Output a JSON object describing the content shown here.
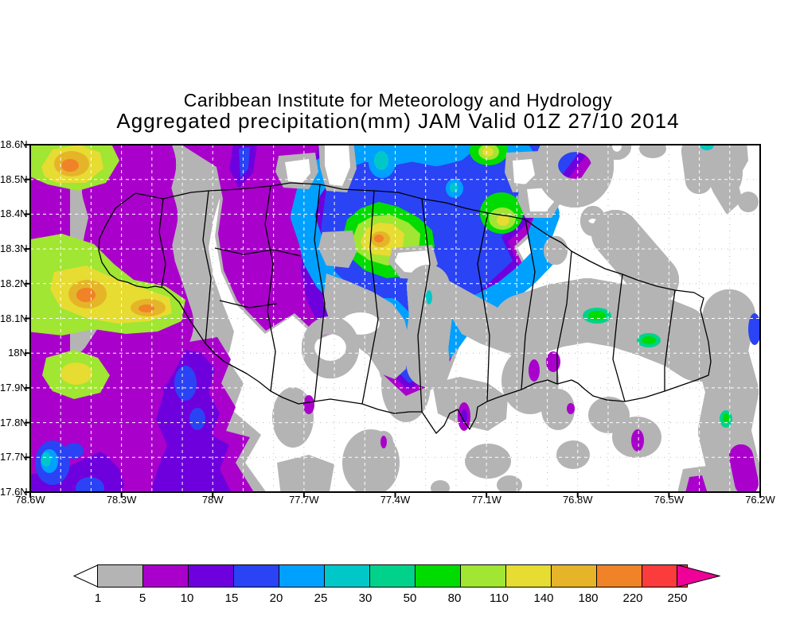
{
  "header": {
    "line1": "Caribbean Institute for Meteorology and Hydrology",
    "line2": "Aggregated precipitation(mm) JAM Valid 01Z 27/10 2014"
  },
  "map": {
    "x_axis": {
      "labels": [
        "78.6W",
        "78.3W",
        "78W",
        "77.7W",
        "77.4W",
        "77.1W",
        "76.8W",
        "76.5W",
        "76.2W"
      ]
    },
    "y_axis": {
      "labels": [
        "18.6N",
        "18.5N",
        "18.4N",
        "18.3N",
        "18.2N",
        "18.1N",
        "18N",
        "17.9N",
        "17.8N",
        "17.7N",
        "17.6N"
      ]
    }
  },
  "colorbar": {
    "values": [
      "1",
      "5",
      "10",
      "15",
      "20",
      "25",
      "30",
      "50",
      "80",
      "110",
      "140",
      "180",
      "220",
      "250"
    ],
    "segment_colors": [
      "#b4b4b4",
      "#aa00cc",
      "#6e00dd",
      "#2a43f5",
      "#00a0ff",
      "#00c8c8",
      "#00d28c",
      "#00dc00",
      "#a0e632",
      "#e6dc32",
      "#e6b428",
      "#f08228",
      "#fa3c3c"
    ],
    "under_range_color": "#ffffff",
    "over_range_color": "#ee0099"
  },
  "chart_data": {
    "type": "heatmap",
    "title": "Aggregated precipitation(mm) JAM Valid 01Z 27/10 2014",
    "region": "Jamaica",
    "lon_range_deg_west": [
      78.6,
      76.2
    ],
    "lat_range_deg_north": [
      17.6,
      18.6
    ],
    "units": "mm",
    "levels_mm": [
      1,
      5,
      10,
      15,
      20,
      25,
      30,
      50,
      80,
      110,
      140,
      180,
      220,
      250
    ],
    "level_colors": [
      "#b4b4b4",
      "#aa00cc",
      "#6e00dd",
      "#2a43f5",
      "#00a0ff",
      "#00c8c8",
      "#00d28c",
      "#00dc00",
      "#a0e632",
      "#e6dc32",
      "#e6b428",
      "#f08228",
      "#fa3c3c",
      "#ee0099"
    ],
    "grid_spacing_deg": 0.1,
    "notable_maxima": [
      {
        "lon_w": 78.5,
        "lat_n": 18.55,
        "value_mm": 200
      },
      {
        "lon_w": 78.45,
        "lat_n": 18.17,
        "value_mm": 200
      },
      {
        "lon_w": 77.45,
        "lat_n": 18.33,
        "value_mm": 160
      },
      {
        "lon_w": 77.1,
        "lat_n": 18.58,
        "value_mm": 120
      },
      {
        "lon_w": 77.05,
        "lat_n": 18.4,
        "value_mm": 120
      }
    ]
  }
}
